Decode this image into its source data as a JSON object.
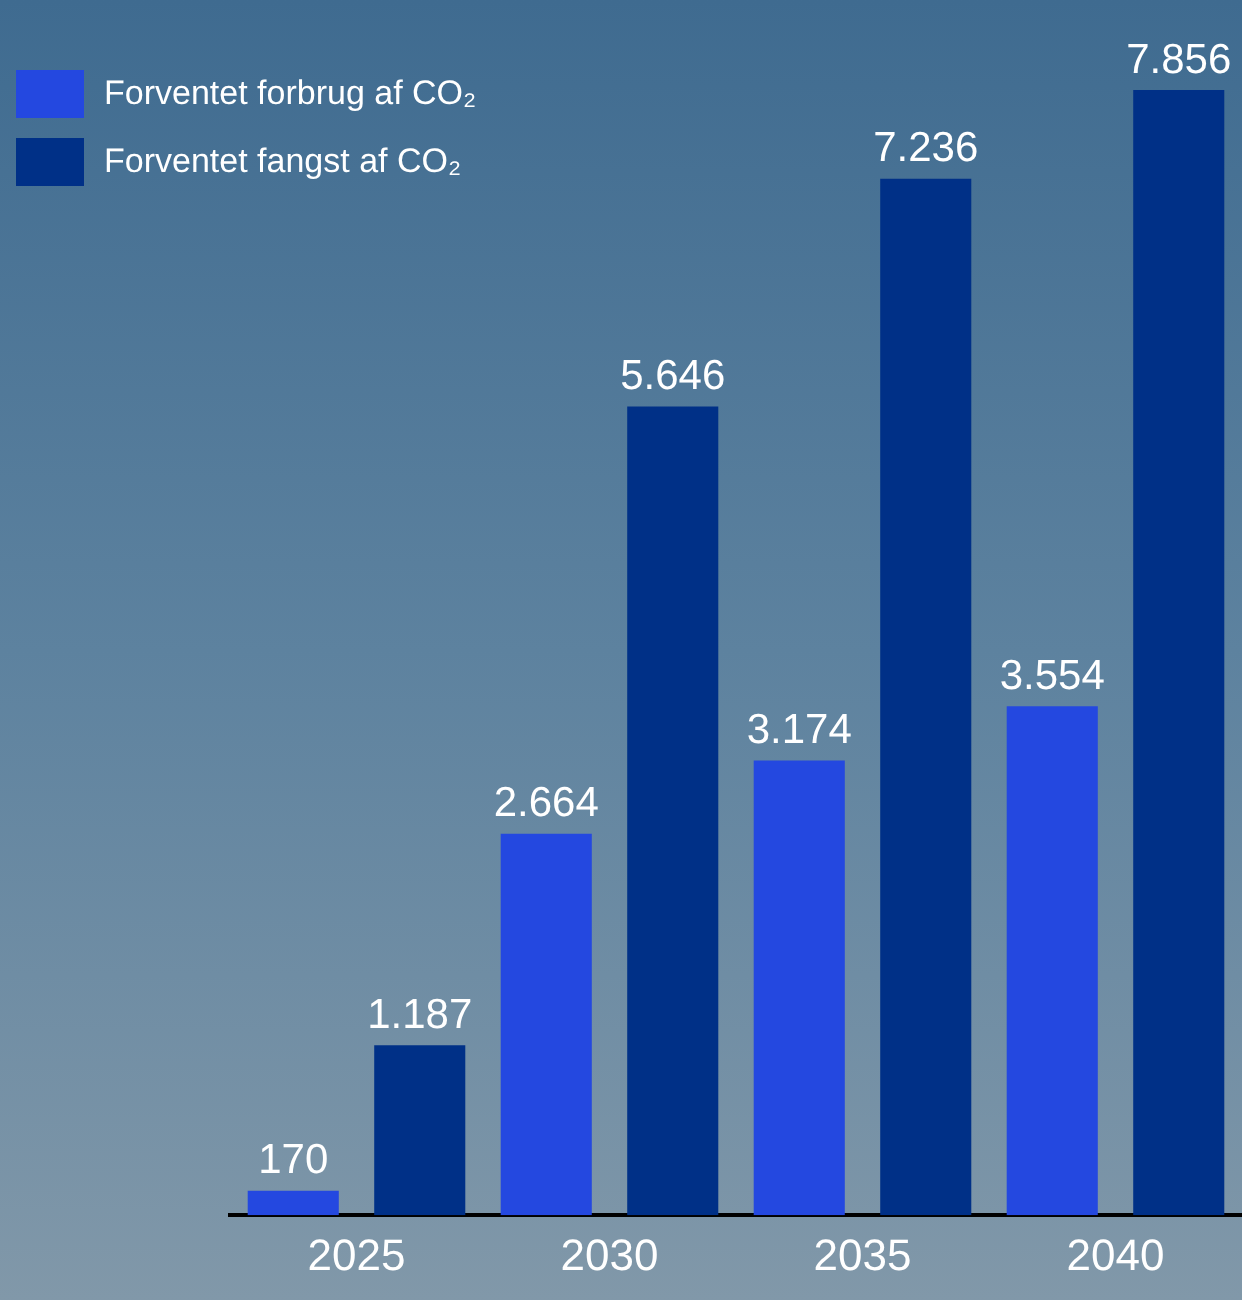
{
  "chart_data": {
    "type": "bar",
    "categories": [
      "2025",
      "2030",
      "2035",
      "2040"
    ],
    "series": [
      {
        "name": "Forventet forbrug af CO₂",
        "color": "#2448e0",
        "values": [
          170,
          2664,
          3174,
          3554
        ],
        "value_labels": [
          "170",
          "2.664",
          "3.174",
          "3.554"
        ]
      },
      {
        "name": "Forventet fangst af CO₂",
        "color": "#003087",
        "values": [
          1187,
          5646,
          7236,
          7856
        ],
        "value_labels": [
          "1.187",
          "5.646",
          "7.236",
          "7.856"
        ]
      }
    ],
    "grid": false,
    "legend": "top left"
  }
}
